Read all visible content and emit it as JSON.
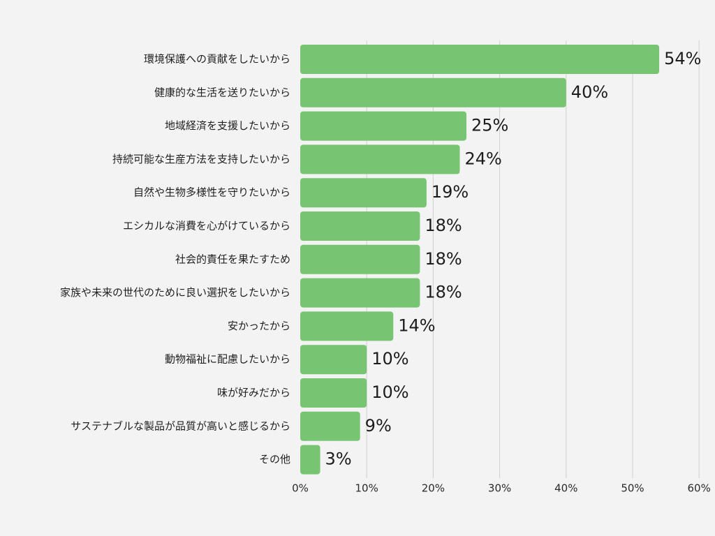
{
  "chart_data": {
    "type": "bar",
    "orientation": "horizontal",
    "categories": [
      "環境保護への貢献をしたいから",
      "健康的な生活を送りたいから",
      "地域経済を支援したいから",
      "持続可能な生産方法を支持したいから",
      "自然や生物多様性を守りたいから",
      "エシカルな消費を心がけているから",
      "社会的責任を果たすため",
      "家族や未来の世代のために良い選択をしたいから",
      "安かったから",
      "動物福祉に配慮したいから",
      "味が好みだから",
      "サステナブルな製品が品質が高いと感じるから",
      "その他"
    ],
    "values": [
      54,
      40,
      25,
      24,
      19,
      18,
      18,
      18,
      14,
      10,
      10,
      9,
      3
    ],
    "value_labels": [
      "54%",
      "40%",
      "25%",
      "24%",
      "19%",
      "18%",
      "18%",
      "18%",
      "14%",
      "10%",
      "10%",
      "9%",
      "3%"
    ],
    "xlim": [
      0,
      60
    ],
    "x_ticks": [
      0,
      10,
      20,
      30,
      40,
      50,
      60
    ],
    "x_tick_labels": [
      "0%",
      "10%",
      "20%",
      "30%",
      "40%",
      "50%",
      "60%"
    ],
    "grid": true,
    "title": "",
    "xlabel": "",
    "ylabel": "",
    "colors": {
      "bar": "#77c572",
      "grid": "#cfcfcf",
      "background": "#f3f3f3"
    }
  }
}
